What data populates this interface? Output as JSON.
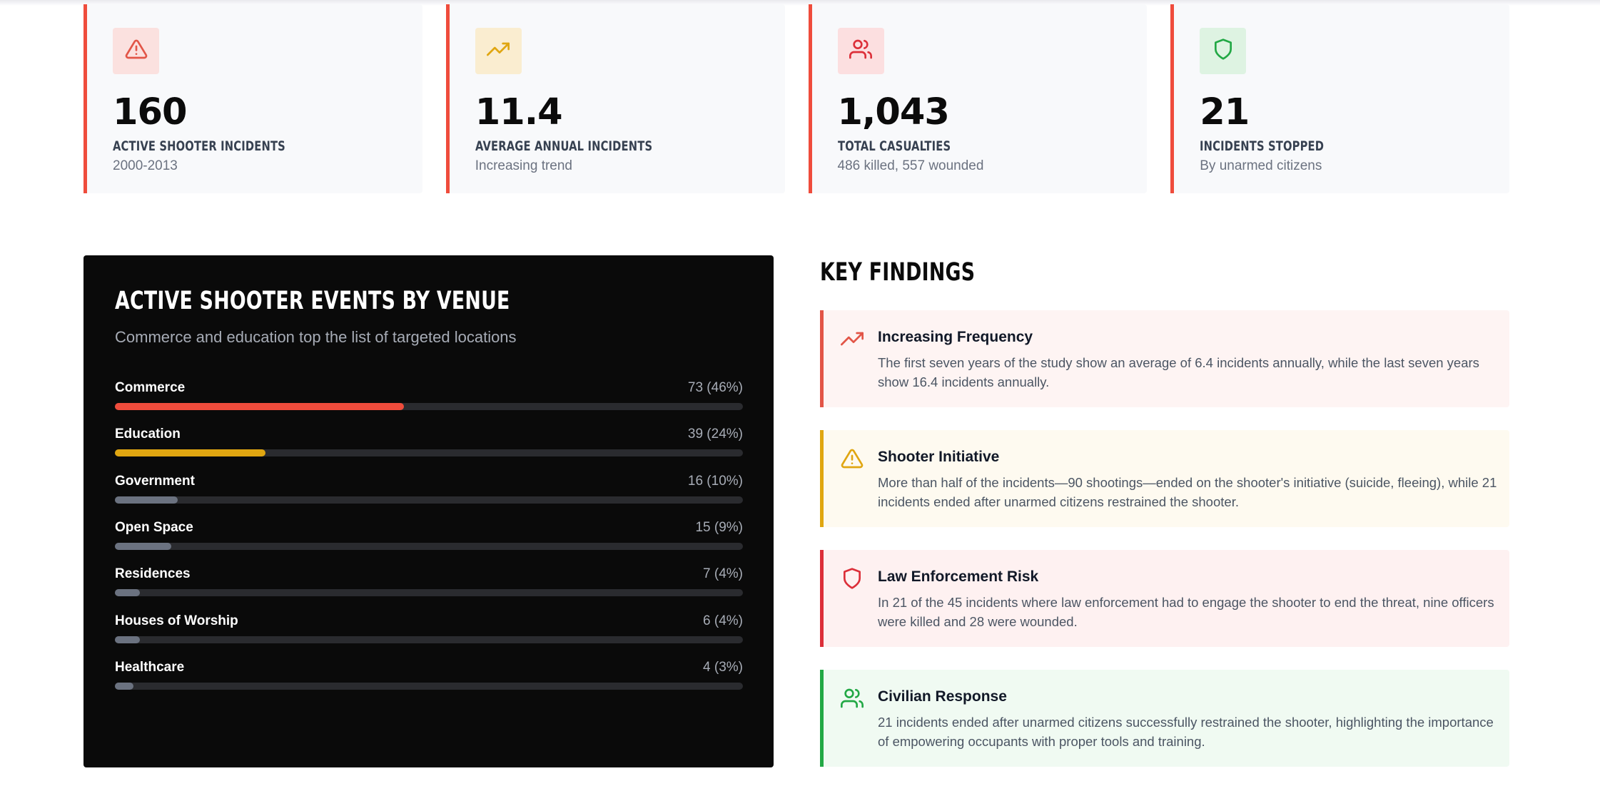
{
  "stats": [
    {
      "icon": "alert-triangle-icon",
      "value": "160",
      "label": "ACTIVE SHOOTER INCIDENTS",
      "sub": "2000-2013",
      "icon_color": "#e25547",
      "icon_bg": "#fbe1df"
    },
    {
      "icon": "trending-up-icon",
      "value": "11.4",
      "label": "AVERAGE ANNUAL INCIDENTS",
      "sub": "Increasing trend",
      "icon_color": "#e0a611",
      "icon_bg": "#faedd0"
    },
    {
      "icon": "users-icon",
      "value": "1,043",
      "label": "TOTAL CASUALTIES",
      "sub": "486 killed, 557 wounded",
      "icon_color": "#dc2f39",
      "icon_bg": "#fcdfe0"
    },
    {
      "icon": "shield-icon",
      "value": "21",
      "label": "INCIDENTS STOPPED",
      "sub": "By unarmed citizens",
      "icon_color": "#22a845",
      "icon_bg": "#def3e2"
    }
  ],
  "venue": {
    "title": "ACTIVE SHOOTER EVENTS BY VENUE",
    "subtitle": "Commerce and education top the list of targeted locations",
    "items": [
      {
        "name": "Commerce",
        "value_label": "73 (46%)",
        "percent": 46,
        "color": "#ef4c3c"
      },
      {
        "name": "Education",
        "value_label": "39 (24%)",
        "percent": 24,
        "color": "#e0a611"
      },
      {
        "name": "Government",
        "value_label": "16 (10%)",
        "percent": 10,
        "color": "#6b7280"
      },
      {
        "name": "Open Space",
        "value_label": "15 (9%)",
        "percent": 9,
        "color": "#6b7280"
      },
      {
        "name": "Residences",
        "value_label": "7 (4%)",
        "percent": 4,
        "color": "#6b7280"
      },
      {
        "name": "Houses of Worship",
        "value_label": "6 (4%)",
        "percent": 4,
        "color": "#6b7280"
      },
      {
        "name": "Healthcare",
        "value_label": "4 (3%)",
        "percent": 3,
        "color": "#6b7280"
      }
    ]
  },
  "findings": {
    "heading": "KEY FINDINGS",
    "items": [
      {
        "icon": "trending-up-icon",
        "title": "Increasing Frequency",
        "text": "The first seven years of the study show an average of 6.4 incidents annually, while the last seven years show 16.4 incidents annually.",
        "accent": "#e25547",
        "bg": "#fef4f3"
      },
      {
        "icon": "alert-triangle-icon",
        "title": "Shooter Initiative",
        "text": "More than half of the incidents—90 shootings—ended on the shooter's initiative (suicide, fleeing), while 21 incidents ended after unarmed citizens restrained the shooter.",
        "accent": "#e0a611",
        "bg": "#fefaf0"
      },
      {
        "icon": "shield-icon",
        "title": "Law Enforcement Risk",
        "text": "In 21 of the 45 incidents where law enforcement had to engage the shooter to end the threat, nine officers were killed and 28 were wounded.",
        "accent": "#dc2f39",
        "bg": "#fef1f1"
      },
      {
        "icon": "users-icon",
        "title": "Civilian Response",
        "text": "21 incidents ended after unarmed citizens successfully restrained the shooter, highlighting the importance of empowering occupants with proper tools and training.",
        "accent": "#22a845",
        "bg": "#f0faf2"
      }
    ]
  }
}
